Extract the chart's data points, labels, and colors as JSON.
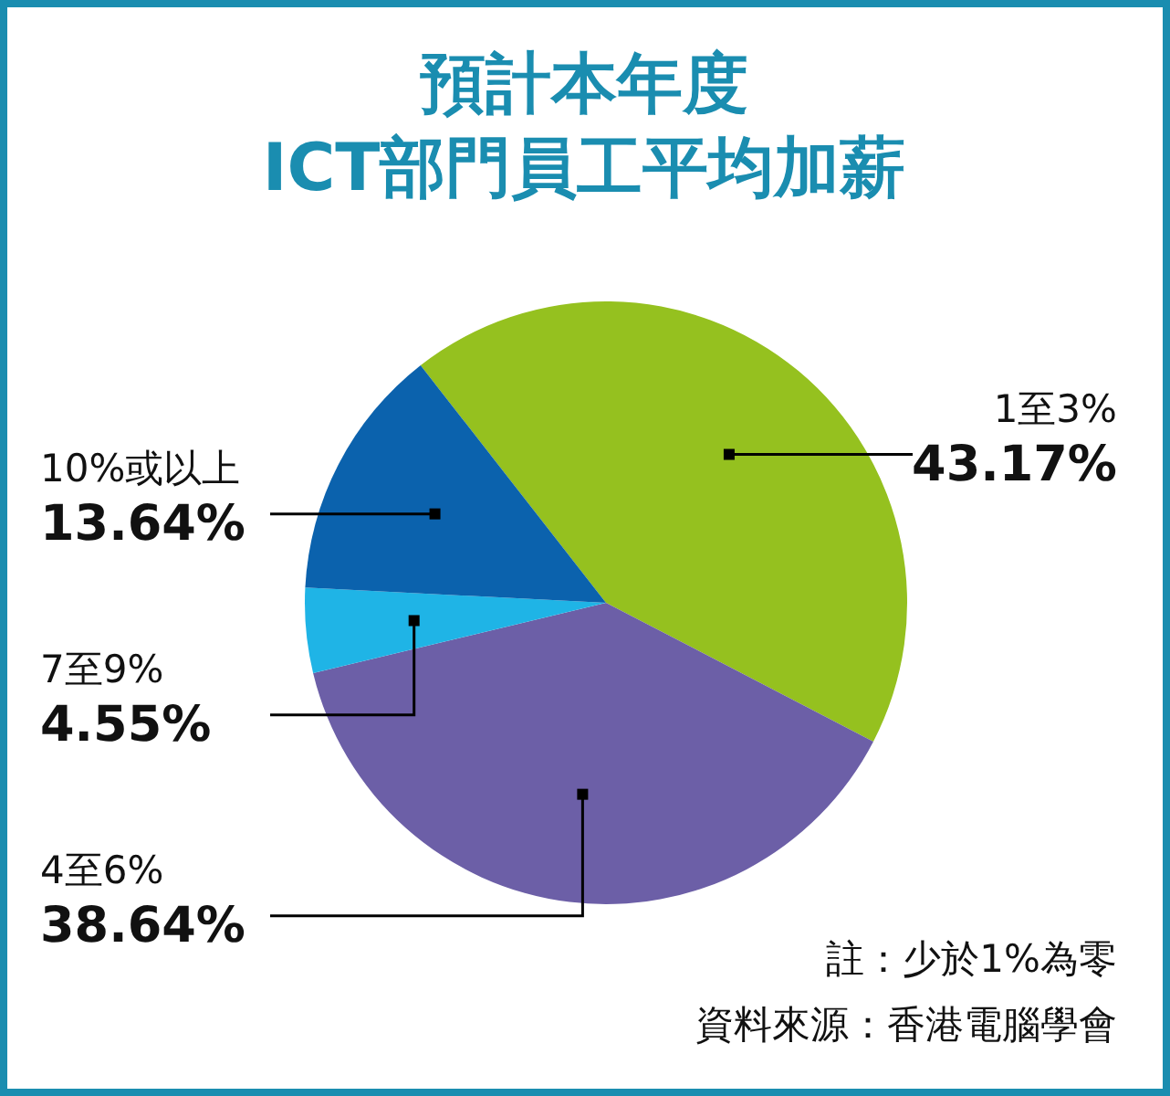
{
  "chart_data": {
    "type": "pie",
    "title": "預計本年度\nICT部門員工平均加薪",
    "categories": [
      "1至3%",
      "4至6%",
      "7至9%",
      "10%或以上"
    ],
    "values": [
      43.17,
      38.64,
      4.55,
      13.64
    ],
    "value_labels": [
      "43.17%",
      "38.64%",
      "4.55%",
      "13.64%"
    ],
    "colors": [
      "#95c11f",
      "#6c5fa7",
      "#1fb4e6",
      "#0b62ad"
    ],
    "annotations": [
      "註：少於1%為零",
      "資料來源：香港電腦學會"
    ]
  }
}
